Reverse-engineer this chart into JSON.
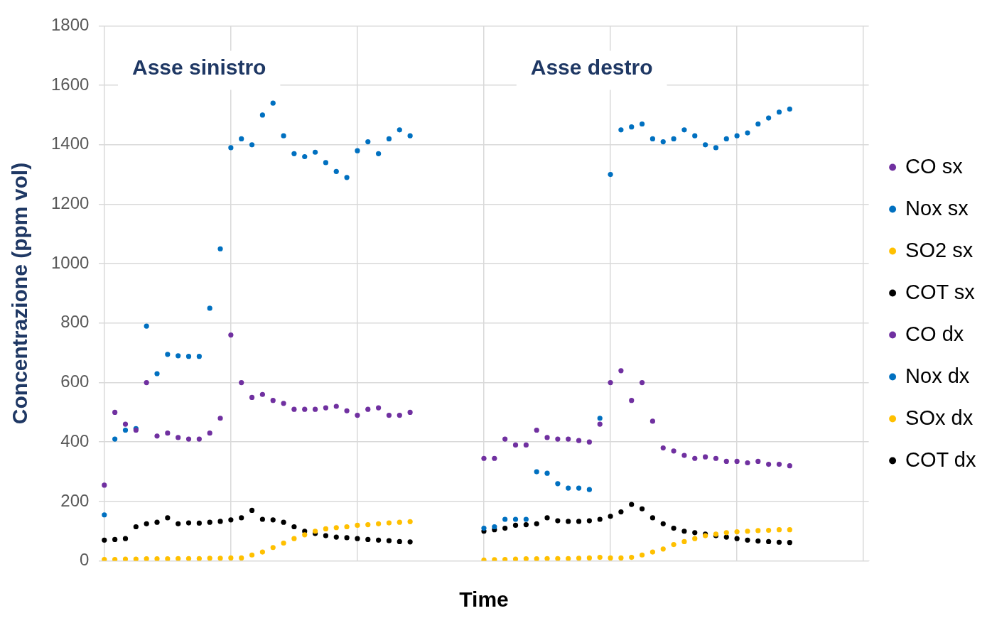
{
  "chart_data": {
    "type": "scatter",
    "xlabel": "Time",
    "ylabel": "Concentrazione (ppm vol)",
    "categories": [
      null,
      null,
      null,
      null,
      null,
      null,
      null,
      null,
      null,
      null,
      null,
      null,
      null,
      null,
      null,
      null,
      null,
      null,
      null,
      null,
      null,
      null,
      null,
      null,
      null,
      null,
      null,
      null,
      null,
      null,
      null,
      null,
      null,
      null,
      null,
      null,
      null,
      null,
      null,
      null,
      null,
      null,
      null,
      null,
      null,
      null,
      null,
      null,
      null,
      null,
      null,
      null,
      null,
      null,
      null,
      null,
      null,
      null,
      null,
      null,
      null,
      null,
      null,
      null,
      null,
      null,
      null,
      null,
      null,
      null,
      null,
      null,
      null
    ],
    "ylim": [
      0,
      1800
    ],
    "yticks": [
      0,
      200,
      400,
      600,
      800,
      1000,
      1200,
      1400,
      1600,
      1800
    ],
    "grid": true,
    "legend": "right",
    "marker": "circle",
    "annotations": [
      "Asse sinistro",
      "Asse destro"
    ],
    "series": [
      {
        "name": "CO sx",
        "color": "#7030a0",
        "values": [
          255,
          500,
          460,
          440,
          600,
          420,
          430,
          415,
          410,
          410,
          430,
          480,
          760,
          600,
          550,
          560,
          540,
          530,
          510,
          510,
          510,
          515,
          520,
          505,
          490,
          510,
          515,
          490,
          490,
          500,
          null,
          null,
          null,
          null,
          null,
          null,
          null,
          null,
          null,
          null,
          null,
          null,
          null,
          null,
          null,
          null,
          null,
          null,
          null,
          null,
          null,
          null,
          null,
          null,
          null,
          null,
          null,
          null,
          null,
          null,
          null,
          null,
          null,
          null,
          null,
          null,
          null,
          null,
          null,
          null,
          null,
          null,
          null
        ]
      },
      {
        "name": "Nox sx",
        "color": "#0070c0",
        "values": [
          155,
          410,
          440,
          445,
          790,
          630,
          695,
          690,
          688,
          688,
          850,
          1050,
          1390,
          1420,
          1400,
          1500,
          1540,
          1430,
          1370,
          1360,
          1375,
          1340,
          1310,
          1290,
          1380,
          1410,
          1370,
          1420,
          1450,
          1430,
          null,
          null,
          null,
          null,
          null,
          null,
          null,
          null,
          null,
          null,
          null,
          null,
          null,
          null,
          null,
          null,
          null,
          null,
          null,
          null,
          null,
          null,
          null,
          null,
          null,
          null,
          null,
          null,
          null,
          null,
          null,
          null,
          null,
          null,
          null,
          null,
          null,
          null,
          null,
          null,
          null,
          null,
          null
        ]
      },
      {
        "name": "SO2 sx",
        "color": "#ffc000",
        "values": [
          5,
          5,
          6,
          6,
          7,
          7,
          7,
          8,
          8,
          8,
          9,
          9,
          10,
          10,
          20,
          30,
          45,
          60,
          75,
          88,
          100,
          108,
          112,
          115,
          120,
          122,
          125,
          128,
          130,
          132,
          null,
          null,
          null,
          null,
          null,
          null,
          null,
          null,
          null,
          null,
          null,
          null,
          null,
          null,
          null,
          null,
          null,
          null,
          null,
          null,
          null,
          null,
          null,
          null,
          null,
          null,
          null,
          null,
          null,
          null,
          null,
          null,
          null,
          null,
          null,
          null,
          null,
          null,
          null,
          null,
          null,
          null,
          null
        ]
      },
      {
        "name": "COT sx",
        "color": "#000000",
        "values": [
          70,
          72,
          75,
          115,
          125,
          130,
          145,
          125,
          128,
          127,
          130,
          133,
          138,
          145,
          170,
          140,
          138,
          130,
          115,
          100,
          92,
          85,
          80,
          78,
          75,
          72,
          70,
          68,
          65,
          64,
          null,
          null,
          null,
          null,
          null,
          null,
          null,
          null,
          null,
          null,
          null,
          null,
          null,
          null,
          null,
          null,
          null,
          null,
          null,
          null,
          null,
          null,
          null,
          null,
          null,
          null,
          null,
          null,
          null,
          null,
          null,
          null,
          null,
          null,
          null,
          null,
          null,
          null,
          null,
          null,
          null,
          null,
          null
        ]
      },
      {
        "name": "CO dx",
        "color": "#7030a0",
        "values": [
          null,
          null,
          null,
          null,
          null,
          null,
          null,
          null,
          null,
          null,
          null,
          null,
          null,
          null,
          null,
          null,
          null,
          null,
          null,
          null,
          null,
          null,
          null,
          null,
          null,
          null,
          null,
          null,
          null,
          null,
          null,
          null,
          null,
          null,
          null,
          null,
          345,
          345,
          410,
          390,
          390,
          440,
          415,
          410,
          410,
          405,
          400,
          460,
          600,
          640,
          540,
          600,
          470,
          380,
          370,
          355,
          345,
          350,
          345,
          335,
          335,
          330,
          335,
          325,
          325,
          320,
          null,
          null,
          null,
          null,
          null,
          null,
          null
        ]
      },
      {
        "name": "Nox dx",
        "color": "#0070c0",
        "values": [
          null,
          null,
          null,
          null,
          null,
          null,
          null,
          null,
          null,
          null,
          null,
          null,
          null,
          null,
          null,
          null,
          null,
          null,
          null,
          null,
          null,
          null,
          null,
          null,
          null,
          null,
          null,
          null,
          null,
          null,
          null,
          null,
          null,
          null,
          null,
          null,
          110,
          115,
          140,
          140,
          140,
          300,
          295,
          260,
          245,
          245,
          240,
          480,
          1300,
          1450,
          1460,
          1470,
          1420,
          1410,
          1420,
          1450,
          1430,
          1400,
          1390,
          1420,
          1430,
          1440,
          1470,
          1490,
          1510,
          1520,
          null,
          null,
          null,
          null,
          null,
          null,
          null
        ]
      },
      {
        "name": "SOx dx",
        "color": "#ffc000",
        "values": [
          null,
          null,
          null,
          null,
          null,
          null,
          null,
          null,
          null,
          null,
          null,
          null,
          null,
          null,
          null,
          null,
          null,
          null,
          null,
          null,
          null,
          null,
          null,
          null,
          null,
          null,
          null,
          null,
          null,
          null,
          null,
          null,
          null,
          null,
          null,
          null,
          3,
          4,
          5,
          6,
          7,
          7,
          8,
          8,
          8,
          9,
          10,
          12,
          10,
          10,
          12,
          20,
          30,
          40,
          55,
          65,
          75,
          85,
          90,
          95,
          98,
          100,
          102,
          103,
          105,
          105,
          null,
          null,
          null,
          null,
          null,
          null,
          null
        ]
      },
      {
        "name": "COT dx",
        "color": "#000000",
        "values": [
          null,
          null,
          null,
          null,
          null,
          null,
          null,
          null,
          null,
          null,
          null,
          null,
          null,
          null,
          null,
          null,
          null,
          null,
          null,
          null,
          null,
          null,
          null,
          null,
          null,
          null,
          null,
          null,
          null,
          null,
          null,
          null,
          null,
          null,
          null,
          null,
          100,
          105,
          110,
          120,
          122,
          125,
          145,
          135,
          133,
          133,
          135,
          140,
          150,
          165,
          190,
          175,
          145,
          125,
          110,
          100,
          95,
          90,
          85,
          80,
          75,
          70,
          67,
          65,
          63,
          62,
          null,
          null,
          null,
          null,
          null,
          null,
          null
        ]
      }
    ]
  }
}
